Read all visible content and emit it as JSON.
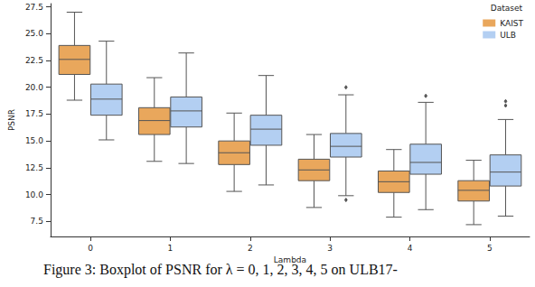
{
  "chart_data": {
    "type": "boxplot",
    "x_label": "Lambda",
    "y_label": "PSNR",
    "legend_title": "Dataset",
    "caption": "Figure 3: Boxplot of PSNR for λ = 0, 1, 2, 3, 4, 5 on ULB17-",
    "categories": [
      "0",
      "1",
      "2",
      "3",
      "4",
      "5"
    ],
    "ylim": [
      6.1,
      27.8
    ],
    "yticks": [
      7.5,
      {
        "value": 10,
        "label": "10.0"
      },
      12.5,
      {
        "value": 15,
        "label": "15.0"
      },
      17.5,
      {
        "value": 20,
        "label": "20.0"
      },
      22.5,
      {
        "value": 25,
        "label": "25.0"
      },
      27.5
    ],
    "grid": false,
    "legend": "upper right",
    "series": [
      {
        "name": "KAIST",
        "color": "#e9a75c",
        "values": [
          [
            18.8,
            21.2,
            22.6,
            23.9,
            27.0
          ],
          [
            13.1,
            15.6,
            16.9,
            18.1,
            20.9
          ],
          [
            10.3,
            12.8,
            13.9,
            15.0,
            17.6
          ],
          [
            8.8,
            11.3,
            12.3,
            13.3,
            15.6
          ],
          [
            7.9,
            10.2,
            11.2,
            12.2,
            14.2
          ],
          [
            7.2,
            9.4,
            10.4,
            11.3,
            13.2
          ]
        ],
        "outliers": [
          [],
          [],
          [],
          [],
          [],
          []
        ]
      },
      {
        "name": "ULB",
        "color": "#b3cff2",
        "values": [
          [
            15.1,
            17.4,
            18.9,
            20.3,
            24.3
          ],
          [
            12.9,
            16.3,
            17.8,
            19.1,
            23.2
          ],
          [
            10.9,
            14.6,
            16.1,
            17.4,
            21.1
          ],
          [
            9.9,
            13.5,
            14.5,
            15.7,
            19.3
          ],
          [
            8.6,
            11.9,
            13.0,
            14.7,
            18.6
          ],
          [
            8.0,
            10.8,
            12.1,
            13.7,
            17.0
          ]
        ],
        "outliers": [
          [],
          [],
          [],
          [
            20.0,
            9.5
          ],
          [
            19.2
          ],
          [
            18.3,
            18.7
          ]
        ]
      }
    ]
  }
}
